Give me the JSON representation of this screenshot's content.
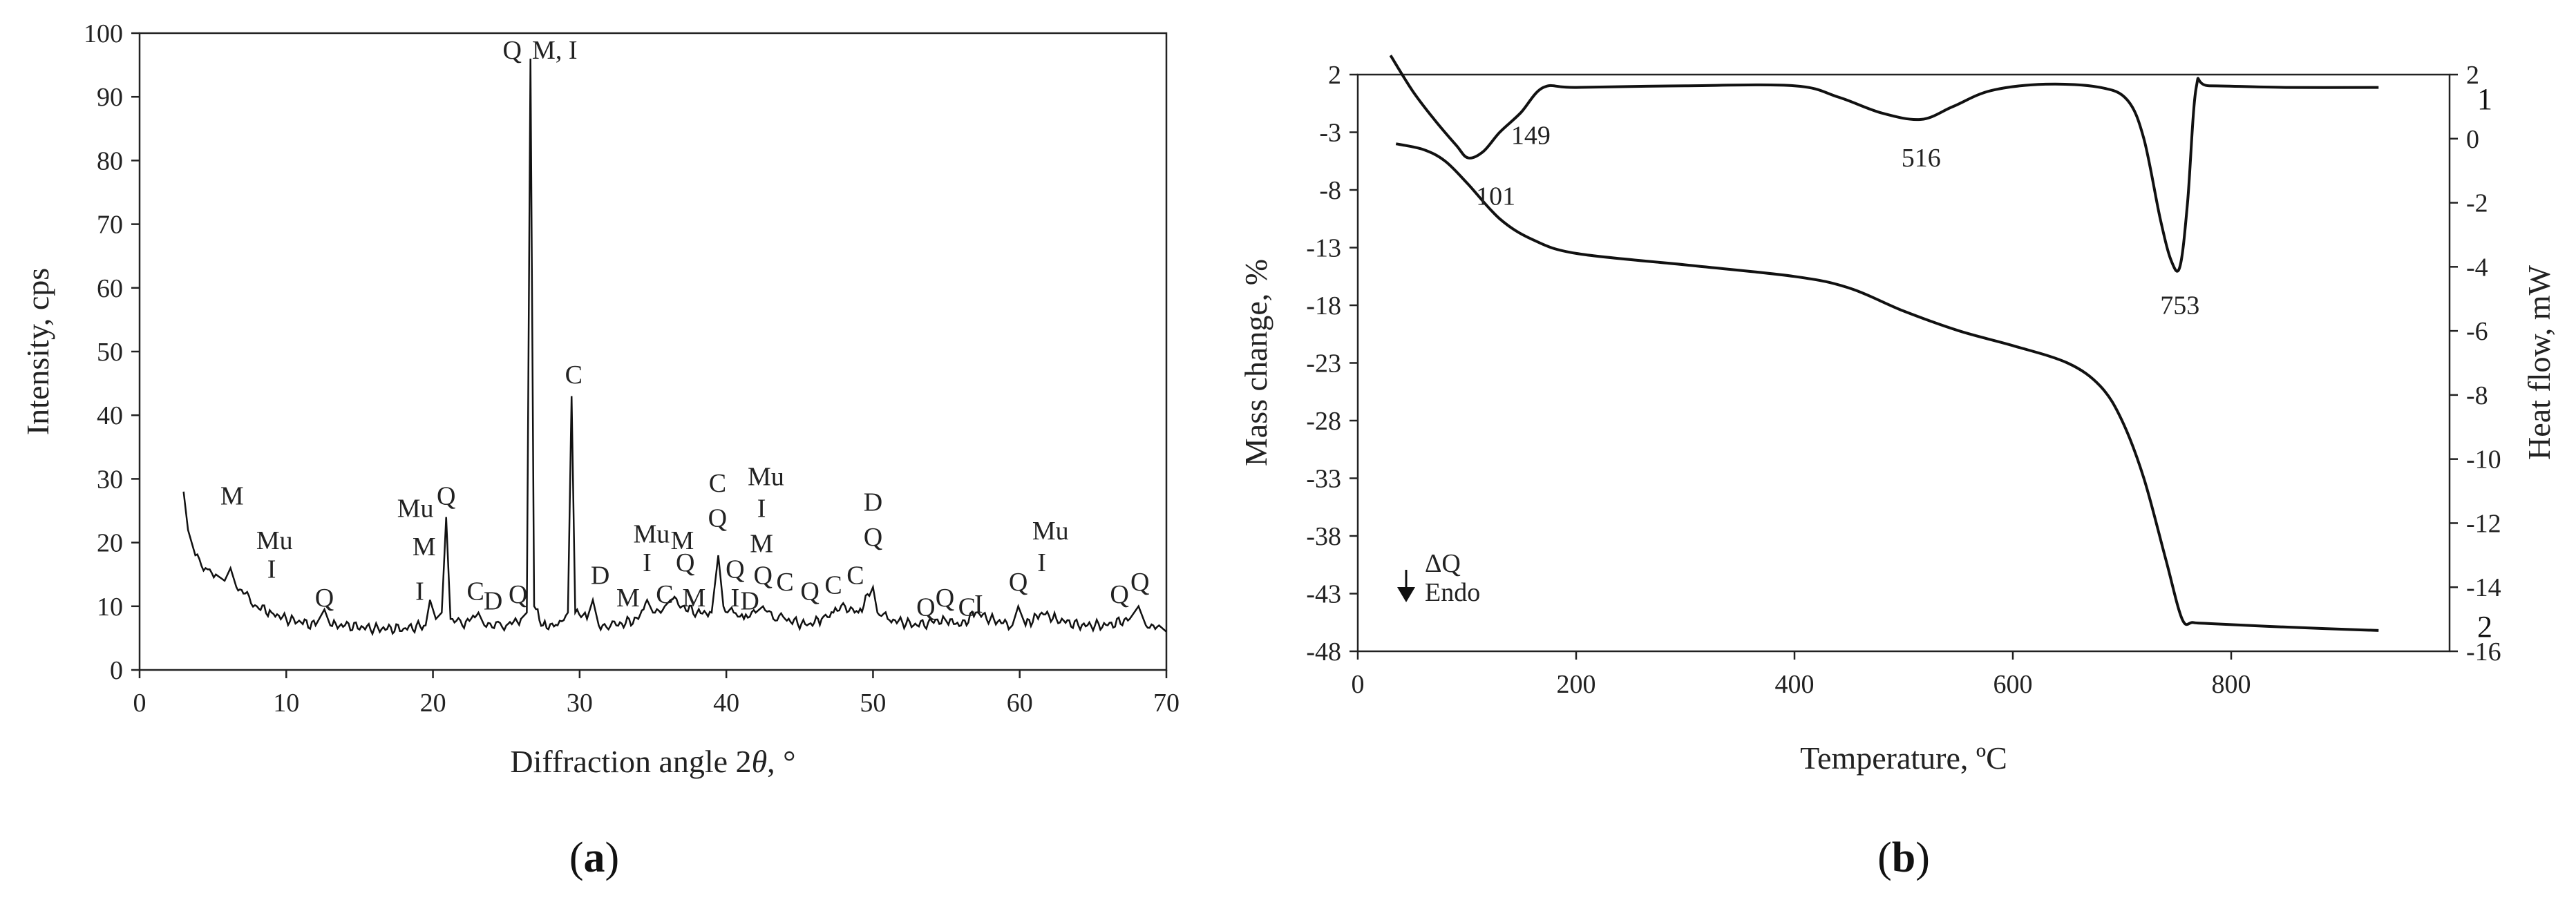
{
  "chart_data": [
    {
      "type": "line",
      "panel_label": "(a)",
      "panel_label_letter": "a",
      "xlabel": "Diffraction angle 2θ, °",
      "xlabel_prefix": "Diffraction angle 2",
      "xlabel_theta": "θ",
      "xlabel_suffix": ", °",
      "ylabel": "Intensity, cps",
      "xlim": [
        0,
        70
      ],
      "ylim": [
        0,
        100
      ],
      "xticks": [
        0,
        10,
        20,
        30,
        40,
        50,
        60,
        70
      ],
      "yticks": [
        0,
        10,
        20,
        30,
        40,
        50,
        60,
        70,
        80,
        90,
        100
      ],
      "series": [
        {
          "x": [
            3,
            3.3,
            3.8,
            4.5,
            5.2,
            5.8,
            6.2,
            6.6,
            7.2,
            8,
            9,
            10,
            11,
            12,
            12.6,
            13,
            14,
            16,
            18,
            19.5,
            19.8,
            20.2,
            20.6,
            20.9,
            21.2,
            22,
            23.1,
            23.5,
            24.3,
            25,
            26,
            26.4,
            26.65,
            26.9,
            27.5,
            28.5,
            29.2,
            29.45,
            29.7,
            30.5,
            30.9,
            31.3,
            32.5,
            34,
            34.6,
            35,
            35.8,
            36.2,
            37,
            38,
            39,
            39.45,
            39.8,
            40.5,
            41.2,
            42,
            42.5,
            43.2,
            44,
            45.5,
            46.5,
            47.3,
            48.1,
            49,
            50,
            50.3,
            51,
            53,
            54.9,
            56,
            57,
            58,
            59.5,
            59.9,
            60.4,
            61.5,
            62.5,
            64,
            66,
            67.5,
            68.1,
            68.6,
            69.5,
            70
          ],
          "y": [
            28,
            22,
            18,
            16,
            15,
            14,
            16,
            13,
            12,
            10,
            9,
            8,
            7.5,
            7,
            9.5,
            7,
            7,
            6.5,
            6.5,
            7,
            11,
            8,
            9,
            24,
            8,
            7,
            9,
            7,
            7.5,
            7,
            8,
            9,
            96,
            10,
            7,
            7,
            9,
            43,
            9,
            8,
            11,
            7,
            7,
            8,
            11,
            9,
            10,
            11,
            10,
            9,
            9,
            18,
            10,
            9,
            8,
            9,
            10,
            8,
            8,
            7,
            8,
            9,
            10,
            9,
            13,
            9,
            8,
            7,
            8,
            7,
            9,
            8,
            7,
            10,
            7,
            9,
            8,
            7,
            7,
            8,
            10,
            7,
            7,
            6
          ]
        }
      ],
      "annotations": [
        {
          "text": "M",
          "x": 6.3,
          "y": 26
        },
        {
          "text": "Mu",
          "x": 9.2,
          "y": 19
        },
        {
          "text": "I",
          "x": 9.0,
          "y": 14.5
        },
        {
          "text": "Q",
          "x": 12.6,
          "y": 10
        },
        {
          "text": "Mu",
          "x": 18.8,
          "y": 24
        },
        {
          "text": "Q",
          "x": 20.9,
          "y": 26
        },
        {
          "text": "M",
          "x": 19.4,
          "y": 18
        },
        {
          "text": "I",
          "x": 19.1,
          "y": 11
        },
        {
          "text": "C",
          "x": 22.9,
          "y": 11
        },
        {
          "text": "D",
          "x": 24.1,
          "y": 9.5
        },
        {
          "text": "Q",
          "x": 25.8,
          "y": 10.5
        },
        {
          "text": "Q",
          "x": 25.4,
          "y": 96
        },
        {
          "text": "M, I",
          "x": 28.3,
          "y": 96
        },
        {
          "text": "C",
          "x": 29.6,
          "y": 45
        },
        {
          "text": "D",
          "x": 31.4,
          "y": 13.5
        },
        {
          "text": "M",
          "x": 33.3,
          "y": 10
        },
        {
          "text": "Mu",
          "x": 34.9,
          "y": 20
        },
        {
          "text": "I",
          "x": 34.6,
          "y": 15.5
        },
        {
          "text": "C",
          "x": 35.8,
          "y": 10.5
        },
        {
          "text": "M",
          "x": 37.0,
          "y": 19
        },
        {
          "text": "Q",
          "x": 37.2,
          "y": 15.5
        },
        {
          "text": "M",
          "x": 37.8,
          "y": 10
        },
        {
          "text": "C",
          "x": 39.4,
          "y": 28
        },
        {
          "text": "Q",
          "x": 39.4,
          "y": 22.5
        },
        {
          "text": "Mu",
          "x": 42.7,
          "y": 29
        },
        {
          "text": "I",
          "x": 42.4,
          "y": 24
        },
        {
          "text": "M",
          "x": 42.4,
          "y": 18.5
        },
        {
          "text": "Q",
          "x": 40.6,
          "y": 14.5
        },
        {
          "text": "I",
          "x": 40.6,
          "y": 10
        },
        {
          "text": "D",
          "x": 41.6,
          "y": 9.5
        },
        {
          "text": "Q",
          "x": 42.5,
          "y": 13.5
        },
        {
          "text": "C",
          "x": 44.0,
          "y": 12.5
        },
        {
          "text": "Q",
          "x": 45.7,
          "y": 11
        },
        {
          "text": "C",
          "x": 47.3,
          "y": 12
        },
        {
          "text": "C",
          "x": 48.8,
          "y": 13.5
        },
        {
          "text": "D",
          "x": 50.0,
          "y": 25
        },
        {
          "text": "Q",
          "x": 50.0,
          "y": 19.5
        },
        {
          "text": "Q",
          "x": 53.6,
          "y": 8.5
        },
        {
          "text": "Q",
          "x": 54.9,
          "y": 10
        },
        {
          "text": "C",
          "x": 56.4,
          "y": 8.5
        },
        {
          "text": "I",
          "x": 57.2,
          "y": 9
        },
        {
          "text": "Q",
          "x": 59.9,
          "y": 12.5
        },
        {
          "text": "Mu",
          "x": 62.1,
          "y": 20.5
        },
        {
          "text": "I",
          "x": 61.5,
          "y": 15.5
        },
        {
          "text": "Q",
          "x": 66.8,
          "y": 10.5
        },
        {
          "text": "Q",
          "x": 68.2,
          "y": 12.5
        }
      ]
    },
    {
      "type": "line",
      "panel_label": "(b)",
      "panel_label_letter": "b",
      "xlabel": "Temperature, ºC",
      "ylabel_left": "Mass change, %",
      "ylabel_right": "Heat flow, mW",
      "xlim": [
        0,
        1000
      ],
      "ylim_left": [
        -48,
        2
      ],
      "ylim_right": [
        -16,
        2
      ],
      "xticks": [
        0,
        200,
        400,
        600,
        800
      ],
      "yticks_left": [
        2,
        -3,
        -8,
        -13,
        -18,
        -23,
        -28,
        -33,
        -38,
        -43,
        -48
      ],
      "yticks_right": [
        2,
        0,
        -2,
        -4,
        -6,
        -8,
        -10,
        -12,
        -14,
        -16
      ],
      "legend_text": "ΔQ",
      "legend_sub": "Endo",
      "series": [
        {
          "name": "1",
          "axis": "right",
          "x": [
            30,
            50,
            70,
            90,
            101,
            115,
            130,
            149,
            170,
            200,
            300,
            400,
            440,
            480,
            516,
            545,
            580,
            630,
            680,
            705,
            720,
            735,
            745,
            753,
            760,
            768,
            780,
            850,
            935
          ],
          "y": [
            2.6,
            1.5,
            0.6,
            -0.2,
            -0.6,
            -0.4,
            0.2,
            0.8,
            1.6,
            1.6,
            1.65,
            1.65,
            1.3,
            0.8,
            0.6,
            1.0,
            1.5,
            1.7,
            1.6,
            1.2,
            0.0,
            -2.5,
            -3.8,
            -4.0,
            -2.0,
            1.6,
            1.65,
            1.6,
            1.6
          ]
        },
        {
          "name": "2",
          "axis": "left",
          "x": [
            35,
            60,
            80,
            101,
            130,
            160,
            200,
            300,
            400,
            450,
            500,
            550,
            600,
            650,
            680,
            700,
            720,
            740,
            755,
            765,
            780,
            850,
            935
          ],
          "y": [
            -4.0,
            -4.5,
            -5.5,
            -7.5,
            -10.5,
            -12.3,
            -13.5,
            -14.5,
            -15.5,
            -16.5,
            -18.5,
            -20.2,
            -21.5,
            -23.0,
            -25.0,
            -28.0,
            -33.0,
            -40.0,
            -45.2,
            -45.5,
            -45.6,
            -45.9,
            -46.2
          ]
        }
      ],
      "annotations": [
        {
          "text": "101",
          "x": 101
        },
        {
          "text": "149",
          "x": 149
        },
        {
          "text": "516",
          "x": 516
        },
        {
          "text": "753",
          "x": 753
        }
      ]
    }
  ]
}
